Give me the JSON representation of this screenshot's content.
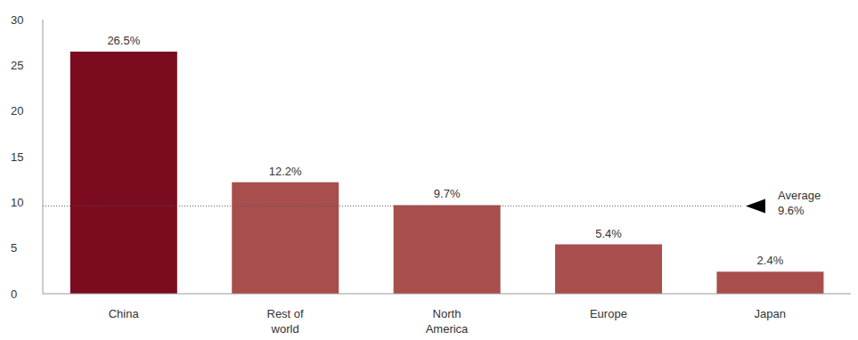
{
  "chart_data": {
    "type": "bar",
    "categories": [
      "China",
      "Rest of world",
      "North America",
      "Europe",
      "Japan"
    ],
    "values": [
      26.5,
      12.2,
      9.7,
      5.4,
      2.4
    ],
    "value_labels": [
      "26.5%",
      "12.2%",
      "9.7%",
      "5.4%",
      "2.4%"
    ],
    "colors": [
      "#7b0b1f",
      "#a84e4d",
      "#a84e4d",
      "#a84e4d",
      "#a84e4d"
    ],
    "ylim": [
      0,
      30
    ],
    "yticks": [
      0,
      5,
      10,
      15,
      20,
      25,
      30
    ],
    "grid": false,
    "data_labels": true,
    "annotations": [
      {
        "text": "Average",
        "value": 9.6,
        "label": "9.6%"
      }
    ]
  }
}
